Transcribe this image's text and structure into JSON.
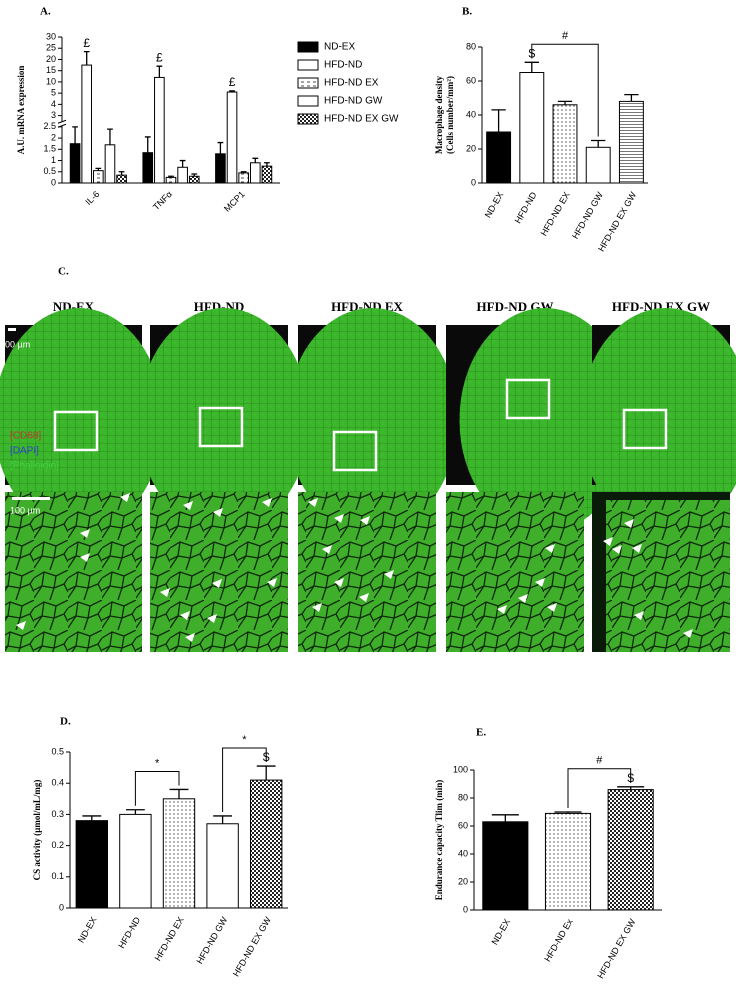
{
  "chart_data": [
    {
      "type": "bar",
      "panel": "A.",
      "y_label": "A.U. mRNA expression",
      "categories": [
        "IL-6",
        "TNFα",
        "MCP1"
      ],
      "series": [
        {
          "name": "ND-EX",
          "fill": "black",
          "values": [
            1.75,
            1.35,
            1.3
          ],
          "errors": [
            0.75,
            0.7,
            0.5
          ]
        },
        {
          "name": "HFD-ND",
          "fill": "white",
          "values": [
            17.5,
            12,
            5.5
          ],
          "errors": [
            6,
            5,
            0.5
          ]
        },
        {
          "name": "HFD-ND EX",
          "fill": "dashes",
          "values": [
            0.55,
            0.25,
            0.45
          ],
          "errors": [
            0.1,
            0.05,
            0.05
          ]
        },
        {
          "name": "HFD-ND GW",
          "fill": "white",
          "values": [
            1.7,
            0.7,
            0.9
          ],
          "errors": [
            0.7,
            0.3,
            0.2
          ]
        },
        {
          "name": "HFD-ND EX GW",
          "fill": "checks",
          "values": [
            0.35,
            0.3,
            0.75
          ],
          "errors": [
            0.15,
            0.1,
            0.15
          ]
        }
      ],
      "ylim": [
        0,
        30
      ],
      "yticks": [
        0,
        0.5,
        1,
        1.5,
        2,
        2.5,
        3,
        4,
        5,
        10,
        15,
        20,
        25,
        30
      ],
      "axis_break": true,
      "legend": "right",
      "annotations": [
        {
          "text": "£",
          "series": 1,
          "at": 0
        },
        {
          "text": "£",
          "series": 1,
          "at": 1
        },
        {
          "text": "£",
          "series": 1,
          "at": 2
        }
      ]
    },
    {
      "type": "bar",
      "panel": "B.",
      "y_label": [
        "Macrophage density",
        "(Cells number/mm²)"
      ],
      "categories": [
        "ND-EX",
        "HFD-ND",
        "HFD-ND EX",
        "HFD-ND GW",
        "HFD-ND EX GW"
      ],
      "values": [
        30,
        65,
        46,
        21,
        48
      ],
      "errors": [
        13,
        6,
        2,
        4,
        4
      ],
      "fills": [
        "black",
        "white",
        "dots",
        "white",
        "lines"
      ],
      "ylim": [
        0,
        80
      ],
      "yticks": [
        0,
        20,
        40,
        60,
        80
      ],
      "annotations": [
        {
          "text": "$",
          "at": 1
        }
      ],
      "brackets": [
        {
          "text": "#",
          "from": 1,
          "to": 3
        }
      ]
    },
    {
      "type": "bar",
      "panel": "D.",
      "y_label": "CS activity (µmol/mL/mg)",
      "categories": [
        "ND-EX",
        "HFD-ND",
        "HFD-ND EX",
        "HFD-ND GW",
        "HFD-ND EX GW"
      ],
      "values": [
        0.28,
        0.3,
        0.35,
        0.27,
        0.41
      ],
      "errors": [
        0.015,
        0.015,
        0.03,
        0.025,
        0.045
      ],
      "fills": [
        "black",
        "white",
        "dots",
        "white",
        "checks"
      ],
      "ylim": [
        0,
        0.5
      ],
      "yticks": [
        0,
        0.1,
        0.2,
        0.3,
        0.4,
        0.5
      ],
      "annotations": [
        {
          "text": "$",
          "at": 4
        }
      ],
      "brackets": [
        {
          "text": "*",
          "from": 1,
          "to": 2
        },
        {
          "text": "*",
          "from": 3,
          "to": 4
        }
      ]
    },
    {
      "type": "bar",
      "panel": "E.",
      "y_label": "Endurance capacity Tlim (min)",
      "categories": [
        "ND-EX",
        "HFD-ND Ex",
        "HFD-ND EX GW"
      ],
      "values": [
        63,
        69,
        86
      ],
      "errors": [
        5,
        1,
        2
      ],
      "fills": [
        "black",
        "dots",
        "checks"
      ],
      "ylim": [
        0,
        100
      ],
      "yticks": [
        0,
        20,
        40,
        60,
        80,
        100
      ],
      "annotations": [
        {
          "text": "$",
          "at": 2
        }
      ],
      "brackets": [
        {
          "text": "#",
          "from": 1,
          "to": 2
        }
      ]
    }
  ],
  "panel_c": {
    "label": "C.",
    "columns": [
      "ND-EX",
      "HFD-ND",
      "HFD-ND EX",
      "HFD-ND GW",
      "HFD-ND EX GW"
    ],
    "scale_bar_top": "00 µm",
    "scale_bar_bottom": "100 µm",
    "stains": [
      {
        "text": "[CD68]",
        "color": "#c0392b"
      },
      {
        "text": "[DAPI]",
        "color": "#3040d0"
      },
      {
        "text": "[Phalloidin]",
        "color": "#40d040"
      }
    ]
  }
}
